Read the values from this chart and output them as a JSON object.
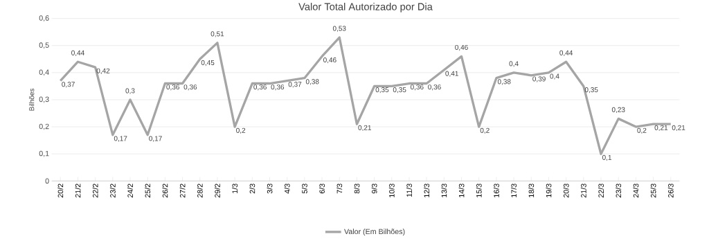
{
  "chart_data": {
    "type": "line",
    "title": "Valor Total Autorizado por Dia",
    "ylabel": "Bilhões",
    "categories": [
      "20/2",
      "21/2",
      "22/2",
      "23/2",
      "24/2",
      "25/2",
      "26/2",
      "27/2",
      "28/2",
      "29/2",
      "1/3",
      "2/3",
      "3/3",
      "4/3",
      "5/3",
      "6/3",
      "7/3",
      "8/3",
      "9/3",
      "10/3",
      "11/3",
      "12/3",
      "13/3",
      "14/3",
      "15/3",
      "16/3",
      "17/3",
      "18/3",
      "19/3",
      "20/3",
      "21/3",
      "22/3",
      "23/3",
      "24/3",
      "25/3",
      "26/3"
    ],
    "series": [
      {
        "name": "Valor (Em Bilhões)",
        "color": "#a5a5a5",
        "values": [
          0.37,
          0.44,
          0.42,
          0.17,
          0.3,
          0.17,
          0.36,
          0.36,
          0.45,
          0.51,
          0.2,
          0.36,
          0.36,
          0.37,
          0.38,
          0.46,
          0.53,
          0.21,
          0.35,
          0.35,
          0.36,
          0.36,
          0.41,
          0.46,
          0.2,
          0.38,
          0.4,
          0.39,
          0.4,
          0.44,
          0.35,
          0.1,
          0.23,
          0.2,
          0.21,
          0.21
        ],
        "value_labels": [
          "0,37",
          "0,44",
          "0,42",
          "0,17",
          "0,3",
          "0,17",
          "0,36",
          "0,36",
          "0,45",
          "0,51",
          "0,2",
          "0,36",
          "0,36",
          "0,37",
          "0,38",
          "0,46",
          "0,53",
          "0,21",
          "0,35",
          "0,35",
          "0,36",
          "0,36",
          "0,41",
          "0,46",
          "0,2",
          "0,38",
          "0,4",
          "0,39",
          "0,4",
          "0,44",
          "0,35",
          "0,1",
          "0,23",
          "0,2",
          "0,21",
          "0,21"
        ]
      }
    ],
    "ylim": [
      0,
      0.6
    ],
    "yticks": [
      0,
      {
        "value": 0.1,
        "label": "0,1"
      },
      {
        "value": 0.2,
        "label": "0,2"
      },
      {
        "value": 0.3,
        "label": "0,3"
      },
      {
        "value": 0.4,
        "label": "0,4"
      },
      {
        "value": 0.5,
        "label": "0,5"
      },
      {
        "value": 0.6,
        "label": "0,6"
      }
    ],
    "grid": "y",
    "legend": "bottom",
    "marker": "none",
    "line_style": "solid"
  }
}
